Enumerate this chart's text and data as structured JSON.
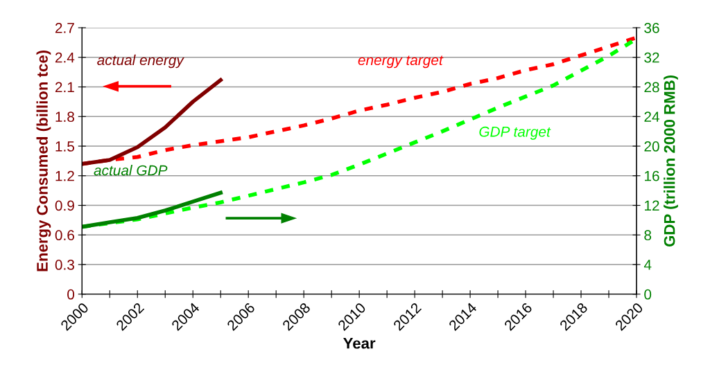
{
  "chart_data": {
    "type": "line",
    "xlabel": "Year",
    "ylabel": "Energy Consumed (billion tce)",
    "y2label": "GDP (trillion 2000 RMB)",
    "xlim": [
      2000,
      2020
    ],
    "xticks": [
      2000,
      {
        "value": 2001,
        "label": null
      },
      2002,
      {
        "value": 2003,
        "label": null
      },
      2004,
      {
        "value": 2005,
        "label": null
      },
      2006,
      {
        "value": 2007,
        "label": null
      },
      2008,
      {
        "value": 2009,
        "label": null
      },
      2010,
      {
        "value": 2011,
        "label": null
      },
      2012,
      {
        "value": 2013,
        "label": null
      },
      2014,
      {
        "value": 2015,
        "label": null
      },
      2016,
      {
        "value": 2017,
        "label": null
      },
      2018,
      {
        "value": 2019,
        "label": null
      },
      2020
    ],
    "ylim": [
      0,
      2.7
    ],
    "yticks": [
      0,
      0.3,
      0.6,
      0.9,
      1.2,
      1.5,
      1.8,
      2.1,
      2.4,
      2.7
    ],
    "y2lim": [
      0,
      36
    ],
    "y2ticks": [
      0,
      4,
      8,
      12,
      16,
      20,
      24,
      28,
      32,
      36
    ],
    "grid": "y",
    "marker": "none",
    "series": [
      {
        "name": "energy target",
        "color": "#ff0000",
        "line_style": "dashed",
        "x": [
          2000,
          2001,
          2002,
          2003,
          2004,
          2005,
          2006,
          2007,
          2008,
          2009,
          2010,
          2011,
          2012,
          2013,
          2014,
          2015,
          2016,
          2017,
          2018,
          2019,
          2020
        ],
        "values": [
          1.32,
          1.36,
          1.39,
          1.46,
          1.51,
          1.55,
          1.59,
          1.65,
          1.71,
          1.78,
          1.86,
          1.92,
          1.99,
          2.05,
          2.13,
          2.19,
          2.27,
          2.33,
          2.42,
          2.51,
          2.6
        ]
      },
      {
        "name": "actual energy",
        "color": "#800000",
        "line_style": "solid",
        "x": [
          2000,
          2001,
          2002,
          2003,
          2004,
          2005
        ],
        "values": [
          1.32,
          1.36,
          1.49,
          1.69,
          1.95,
          2.17
        ]
      },
      {
        "name": "GDP target",
        "color": "#00ff00",
        "line_style": "dashed",
        "axis": "y2",
        "x": [
          2000,
          2001,
          2002,
          2003,
          2004,
          2005,
          2006,
          2007,
          2008,
          2009,
          2010,
          2011,
          2012,
          2013,
          2014,
          2015,
          2016,
          2017,
          2018,
          2019,
          2020
        ],
        "values": [
          9.1,
          9.6,
          10.1,
          10.9,
          11.7,
          12.4,
          13.3,
          14.2,
          15.1,
          16.1,
          17.5,
          19.0,
          20.5,
          22.0,
          23.6,
          25.2,
          26.7,
          28.2,
          30.2,
          32.2,
          34.5
        ]
      },
      {
        "name": "actual GDP",
        "color": "#008000",
        "line_style": "solid",
        "axis": "y2",
        "x": [
          2000,
          2001,
          2002,
          2003,
          2004,
          2005
        ],
        "values": [
          9.1,
          9.7,
          10.3,
          11.3,
          12.5,
          13.7
        ]
      }
    ]
  }
}
